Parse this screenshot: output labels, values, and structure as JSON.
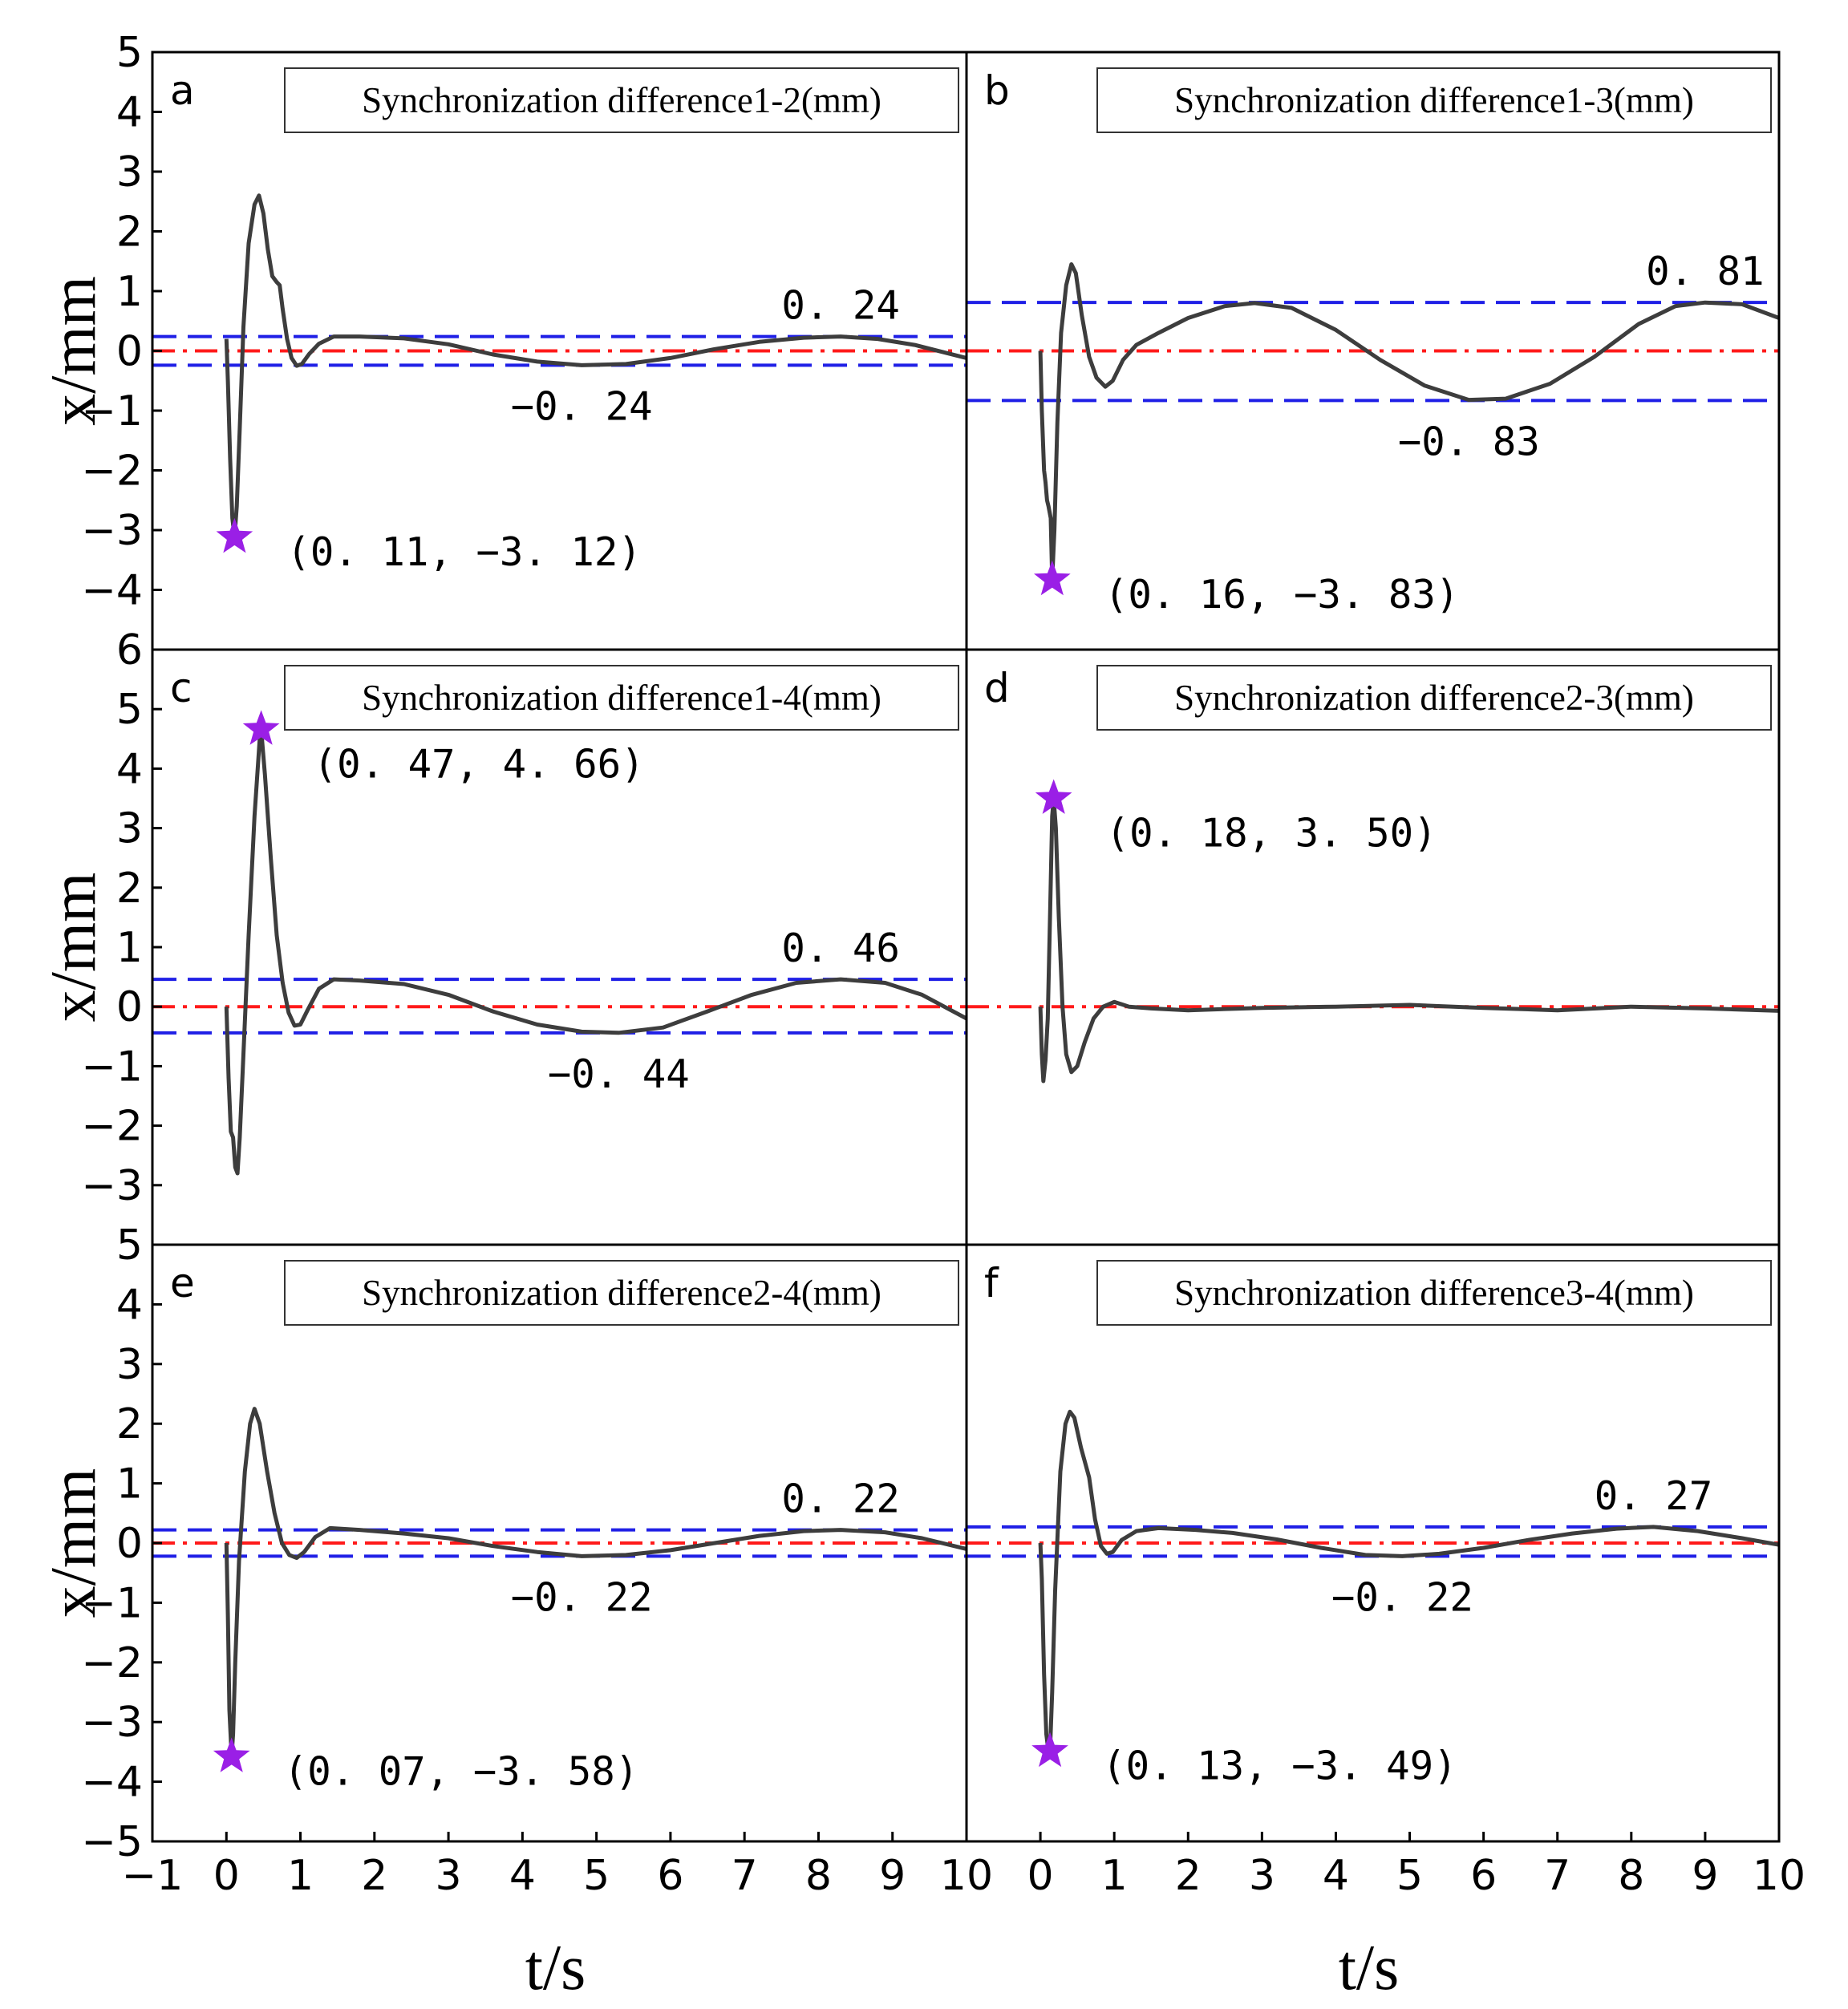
{
  "chart_data": {
    "type": "line",
    "xlabel": "t/s",
    "ylabel": "x/mm",
    "xlim": [
      -1,
      10
    ],
    "colors": {
      "signal": "#3d3d3d",
      "bounds": "#1f1fe6",
      "zero": "#ff1a1a",
      "marker": "#9a1fe6"
    },
    "x_ticks": {
      "left": [
        "−1",
        "0",
        "1",
        "2",
        "3",
        "4",
        "5",
        "6",
        "7",
        "8",
        "9",
        "10"
      ],
      "right": [
        "0",
        "1",
        "2",
        "3",
        "4",
        "5",
        "6",
        "7",
        "8",
        "9",
        "10"
      ]
    },
    "rows": [
      {
        "ylim": [
          -5,
          5
        ],
        "yticks": [
          "−4",
          "−3",
          "−2",
          "−1",
          "0",
          "1",
          "2",
          "3",
          "4",
          "5"
        ]
      },
      {
        "ylim": [
          -4,
          6
        ],
        "yticks": [
          "−3",
          "−2",
          "−1",
          "0",
          "1",
          "2",
          "3",
          "4",
          "5",
          "6"
        ]
      },
      {
        "ylim": [
          -5,
          5
        ],
        "yticks": [
          "−5",
          "−4",
          "−3",
          "−2",
          "−1",
          "0",
          "1",
          "2",
          "3",
          "4",
          "5"
        ]
      }
    ],
    "panels": [
      {
        "id": "a",
        "title": "Synchronization difference1-2(mm)",
        "bounds": [
          0.24,
          -0.24
        ],
        "peak": {
          "t": 0.11,
          "x": -3.12,
          "label": "(0. 11, −3. 12)"
        },
        "max_label": "0. 24",
        "min_label": "−0. 24",
        "series": [
          [
            0,
            0.2
          ],
          [
            0.02,
            -0.5
          ],
          [
            0.05,
            -1.8
          ],
          [
            0.08,
            -2.8
          ],
          [
            0.11,
            -3.12
          ],
          [
            0.14,
            -2.6
          ],
          [
            0.18,
            -1.3
          ],
          [
            0.23,
            0.4
          ],
          [
            0.3,
            1.8
          ],
          [
            0.38,
            2.45
          ],
          [
            0.44,
            2.6
          ],
          [
            0.5,
            2.3
          ],
          [
            0.56,
            1.7
          ],
          [
            0.62,
            1.25
          ],
          [
            0.68,
            1.15
          ],
          [
            0.72,
            1.1
          ],
          [
            0.76,
            0.7
          ],
          [
            0.82,
            0.2
          ],
          [
            0.88,
            -0.12
          ],
          [
            0.95,
            -0.25
          ],
          [
            1.02,
            -0.22
          ],
          [
            1.12,
            -0.05
          ],
          [
            1.25,
            0.12
          ],
          [
            1.45,
            0.24
          ],
          [
            1.8,
            0.24
          ],
          [
            2.4,
            0.21
          ],
          [
            3,
            0.11
          ],
          [
            3.6,
            -0.06
          ],
          [
            4.2,
            -0.18
          ],
          [
            4.8,
            -0.24
          ],
          [
            5.4,
            -0.22
          ],
          [
            6,
            -0.12
          ],
          [
            6.6,
            0.03
          ],
          [
            7.2,
            0.15
          ],
          [
            7.8,
            0.22
          ],
          [
            8.3,
            0.24
          ],
          [
            8.8,
            0.2
          ],
          [
            9.3,
            0.1
          ],
          [
            10,
            -0.12
          ]
        ]
      },
      {
        "id": "b",
        "title": "Synchronization difference1-3(mm)",
        "bounds": [
          0.81,
          -0.83
        ],
        "peak": {
          "t": 0.16,
          "x": -3.83,
          "label": "(0. 16, −3. 83)"
        },
        "max_label": "0. 81",
        "min_label": "−0. 83",
        "series": [
          [
            0,
            0
          ],
          [
            0.02,
            -1.0
          ],
          [
            0.05,
            -2.0
          ],
          [
            0.07,
            -2.2
          ],
          [
            0.09,
            -2.5
          ],
          [
            0.11,
            -2.6
          ],
          [
            0.14,
            -2.8
          ],
          [
            0.16,
            -3.83
          ],
          [
            0.19,
            -3.0
          ],
          [
            0.23,
            -1.2
          ],
          [
            0.28,
            0.3
          ],
          [
            0.35,
            1.1
          ],
          [
            0.42,
            1.45
          ],
          [
            0.48,
            1.3
          ],
          [
            0.56,
            0.6
          ],
          [
            0.66,
            -0.1
          ],
          [
            0.76,
            -0.45
          ],
          [
            0.88,
            -0.6
          ],
          [
            0.98,
            -0.5
          ],
          [
            1.12,
            -0.15
          ],
          [
            1.3,
            0.1
          ],
          [
            1.6,
            0.3
          ],
          [
            2.0,
            0.55
          ],
          [
            2.5,
            0.75
          ],
          [
            2.9,
            0.8
          ],
          [
            3.4,
            0.72
          ],
          [
            4.0,
            0.35
          ],
          [
            4.6,
            -0.15
          ],
          [
            5.2,
            -0.58
          ],
          [
            5.8,
            -0.82
          ],
          [
            6.3,
            -0.8
          ],
          [
            6.9,
            -0.55
          ],
          [
            7.5,
            -0.1
          ],
          [
            8.1,
            0.45
          ],
          [
            8.6,
            0.75
          ],
          [
            9.0,
            0.81
          ],
          [
            9.5,
            0.78
          ],
          [
            10,
            0.55
          ]
        ]
      },
      {
        "id": "c",
        "title": "Synchronization difference1-4(mm)",
        "bounds": [
          0.46,
          -0.44
        ],
        "peak": {
          "t": 0.47,
          "x": 4.66,
          "label": "(0. 47, 4. 66)"
        },
        "max_label": "0. 46",
        "min_label": "−0. 44",
        "series": [
          [
            0,
            0
          ],
          [
            0.03,
            -1.2
          ],
          [
            0.06,
            -2.1
          ],
          [
            0.09,
            -2.2
          ],
          [
            0.12,
            -2.7
          ],
          [
            0.15,
            -2.8
          ],
          [
            0.18,
            -2.2
          ],
          [
            0.23,
            -0.8
          ],
          [
            0.3,
            1.2
          ],
          [
            0.38,
            3.2
          ],
          [
            0.45,
            4.5
          ],
          [
            0.47,
            4.66
          ],
          [
            0.52,
            3.9
          ],
          [
            0.6,
            2.5
          ],
          [
            0.68,
            1.2
          ],
          [
            0.76,
            0.4
          ],
          [
            0.84,
            -0.1
          ],
          [
            0.92,
            -0.32
          ],
          [
            1.0,
            -0.3
          ],
          [
            1.1,
            -0.05
          ],
          [
            1.25,
            0.3
          ],
          [
            1.45,
            0.46
          ],
          [
            1.8,
            0.44
          ],
          [
            2.4,
            0.38
          ],
          [
            3.0,
            0.2
          ],
          [
            3.6,
            -0.08
          ],
          [
            4.2,
            -0.3
          ],
          [
            4.8,
            -0.42
          ],
          [
            5.3,
            -0.44
          ],
          [
            5.9,
            -0.35
          ],
          [
            6.5,
            -0.08
          ],
          [
            7.1,
            0.2
          ],
          [
            7.7,
            0.4
          ],
          [
            8.3,
            0.46
          ],
          [
            8.9,
            0.4
          ],
          [
            9.4,
            0.2
          ],
          [
            10,
            -0.2
          ]
        ]
      },
      {
        "id": "d",
        "title": "Synchronization difference2-3(mm)",
        "bounds": null,
        "peak": {
          "t": 0.18,
          "x": 3.5,
          "label": "(0. 18, 3. 50)"
        },
        "max_label": "",
        "min_label": "",
        "series": [
          [
            0,
            0
          ],
          [
            0.02,
            -0.8
          ],
          [
            0.04,
            -1.25
          ],
          [
            0.07,
            -0.9
          ],
          [
            0.1,
            -0.2
          ],
          [
            0.13,
            1.5
          ],
          [
            0.16,
            3.2
          ],
          [
            0.18,
            3.5
          ],
          [
            0.21,
            3.0
          ],
          [
            0.25,
            1.5
          ],
          [
            0.3,
            0
          ],
          [
            0.35,
            -0.8
          ],
          [
            0.42,
            -1.1
          ],
          [
            0.5,
            -1.0
          ],
          [
            0.6,
            -0.6
          ],
          [
            0.72,
            -0.2
          ],
          [
            0.85,
            0
          ],
          [
            1.0,
            0.08
          ],
          [
            1.2,
            0
          ],
          [
            1.5,
            -0.03
          ],
          [
            2,
            -0.06
          ],
          [
            3,
            -0.02
          ],
          [
            4,
            0.0
          ],
          [
            5,
            0.03
          ],
          [
            6,
            -0.02
          ],
          [
            7,
            -0.06
          ],
          [
            8,
            0.0
          ],
          [
            9,
            -0.03
          ],
          [
            10,
            -0.07
          ]
        ]
      },
      {
        "id": "e",
        "title": "Synchronization difference2-4(mm)",
        "bounds": [
          0.22,
          -0.22
        ],
        "peak": {
          "t": 0.07,
          "x": -3.58,
          "label": "(0. 07, −3. 58)"
        },
        "max_label": "0. 22",
        "min_label": "−0. 22",
        "series": [
          [
            0,
            0
          ],
          [
            0.02,
            -1.2
          ],
          [
            0.04,
            -2.8
          ],
          [
            0.06,
            -3.3
          ],
          [
            0.07,
            -3.58
          ],
          [
            0.09,
            -3.2
          ],
          [
            0.12,
            -2.0
          ],
          [
            0.17,
            -0.3
          ],
          [
            0.25,
            1.2
          ],
          [
            0.32,
            2.0
          ],
          [
            0.38,
            2.25
          ],
          [
            0.45,
            2.0
          ],
          [
            0.55,
            1.2
          ],
          [
            0.65,
            0.5
          ],
          [
            0.75,
            0.0
          ],
          [
            0.85,
            -0.2
          ],
          [
            0.95,
            -0.25
          ],
          [
            1.05,
            -0.15
          ],
          [
            1.2,
            0.1
          ],
          [
            1.4,
            0.25
          ],
          [
            1.8,
            0.22
          ],
          [
            2.4,
            0.16
          ],
          [
            3,
            0.08
          ],
          [
            3.6,
            -0.05
          ],
          [
            4.2,
            -0.15
          ],
          [
            4.8,
            -0.22
          ],
          [
            5.4,
            -0.2
          ],
          [
            6,
            -0.12
          ],
          [
            6.6,
            0.0
          ],
          [
            7.2,
            0.12
          ],
          [
            7.8,
            0.2
          ],
          [
            8.3,
            0.22
          ],
          [
            8.9,
            0.18
          ],
          [
            9.4,
            0.08
          ],
          [
            10,
            -0.1
          ]
        ]
      },
      {
        "id": "f",
        "title": "Synchronization difference3-4(mm)",
        "bounds": [
          0.27,
          -0.22
        ],
        "peak": {
          "t": 0.13,
          "x": -3.49,
          "label": "(0. 13, −3. 49)"
        },
        "max_label": "0. 27",
        "min_label": "−0. 22",
        "series": [
          [
            0,
            0
          ],
          [
            0.02,
            -0.6
          ],
          [
            0.05,
            -2.2
          ],
          [
            0.08,
            -3.2
          ],
          [
            0.1,
            -3.4
          ],
          [
            0.13,
            -3.49
          ],
          [
            0.16,
            -2.5
          ],
          [
            0.2,
            -0.8
          ],
          [
            0.27,
            1.2
          ],
          [
            0.34,
            2.0
          ],
          [
            0.4,
            2.2
          ],
          [
            0.46,
            2.1
          ],
          [
            0.55,
            1.6
          ],
          [
            0.66,
            1.1
          ],
          [
            0.74,
            0.4
          ],
          [
            0.82,
            -0.05
          ],
          [
            0.9,
            -0.18
          ],
          [
            0.98,
            -0.15
          ],
          [
            1.1,
            0.05
          ],
          [
            1.3,
            0.2
          ],
          [
            1.6,
            0.25
          ],
          [
            2.1,
            0.22
          ],
          [
            2.6,
            0.17
          ],
          [
            3.2,
            0.06
          ],
          [
            3.8,
            -0.08
          ],
          [
            4.4,
            -0.2
          ],
          [
            4.9,
            -0.22
          ],
          [
            5.4,
            -0.18
          ],
          [
            6,
            -0.08
          ],
          [
            6.6,
            0.05
          ],
          [
            7.2,
            0.16
          ],
          [
            7.8,
            0.24
          ],
          [
            8.3,
            0.27
          ],
          [
            8.9,
            0.2
          ],
          [
            9.5,
            0.08
          ],
          [
            10,
            -0.03
          ]
        ]
      }
    ]
  }
}
